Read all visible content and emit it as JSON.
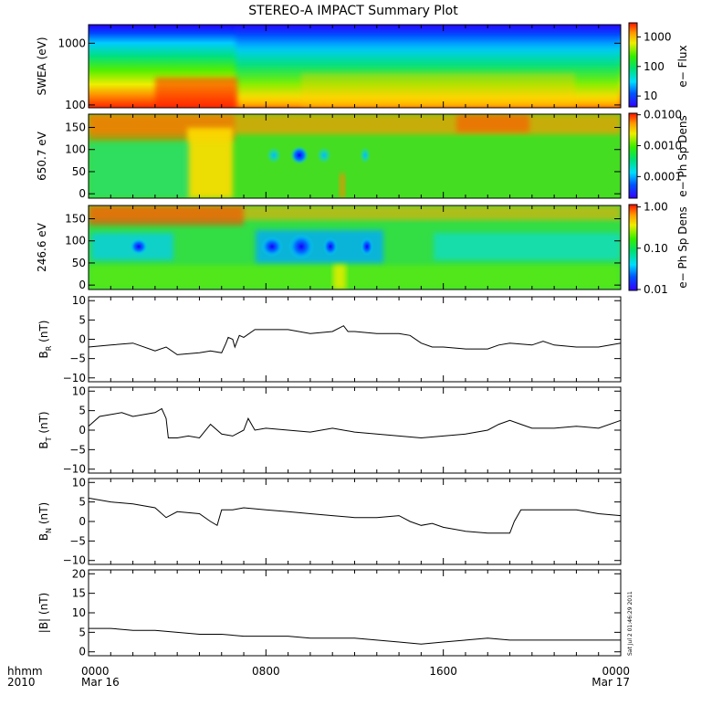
{
  "title": "STEREO-A IMPACT Summary Plot",
  "timestamp": "Sat Jul  2 01:46:29 2011",
  "time_axis": {
    "corner_label_top": "hhmm",
    "corner_label_bottom": "2010",
    "ticks": [
      {
        "hours": 0,
        "label": "0000",
        "date": "Mar 16"
      },
      {
        "hours": 8,
        "label": "0800",
        "date": ""
      },
      {
        "hours": 16,
        "label": "1600",
        "date": ""
      },
      {
        "hours": 24,
        "label": "0000",
        "date": "Mar 17"
      }
    ],
    "range_hours": [
      0,
      24
    ],
    "minor_tick_hours": 1
  },
  "chart_data": [
    {
      "type": "heatmap",
      "ylabel": "SWEA (eV)",
      "y_scale": "log",
      "ylim": [
        90,
        2000
      ],
      "yticks": [
        {
          "value": 100,
          "label": "100"
        },
        {
          "value": 1000,
          "label": "1000"
        }
      ],
      "colorbar": {
        "label": "e− Flux",
        "scale": "log",
        "range": [
          4,
          3000
        ],
        "ticks": [
          {
            "value": 10,
            "label": "10"
          },
          {
            "value": 100,
            "label": "100"
          },
          {
            "value": 1000,
            "label": "1000"
          }
        ]
      }
    },
    {
      "type": "heatmap",
      "ylabel": "650.7 eV",
      "ylim": [
        -10,
        180
      ],
      "yticks": [
        {
          "value": 0,
          "label": "0"
        },
        {
          "value": 50,
          "label": "50"
        },
        {
          "value": 100,
          "label": "100"
        },
        {
          "value": 150,
          "label": "150"
        }
      ],
      "colorbar": {
        "label": "e− Ph Sp Dens",
        "scale": "log",
        "range": [
          2e-05,
          0.012
        ],
        "ticks": [
          {
            "value": 0.0001,
            "label": "0.0001"
          },
          {
            "value": 0.001,
            "label": "0.0010"
          },
          {
            "value": 0.01,
            "label": "0.0100"
          }
        ]
      }
    },
    {
      "type": "heatmap",
      "ylabel": "246.6 eV",
      "ylim": [
        -10,
        180
      ],
      "yticks": [
        {
          "value": 0,
          "label": "0"
        },
        {
          "value": 50,
          "label": "50"
        },
        {
          "value": 100,
          "label": "100"
        },
        {
          "value": 150,
          "label": "150"
        }
      ],
      "colorbar": {
        "label": "e− Ph Sp Dens",
        "scale": "log",
        "range": [
          0.01,
          1.2
        ],
        "ticks": [
          {
            "value": 0.01,
            "label": "0.01"
          },
          {
            "value": 0.1,
            "label": "0.10"
          },
          {
            "value": 1.0,
            "label": "1.00"
          }
        ]
      }
    },
    {
      "type": "line",
      "ylabel_main": "B",
      "ylabel_sub": "R",
      "ylabel_unit": "(nT)",
      "ylim": [
        -11,
        11
      ],
      "yticks": [
        {
          "value": -10,
          "label": "−10"
        },
        {
          "value": -5,
          "label": "−5"
        },
        {
          "value": 0,
          "label": "0"
        },
        {
          "value": 5,
          "label": "5"
        },
        {
          "value": 10,
          "label": "10"
        }
      ],
      "x": [
        0,
        1,
        2,
        3,
        3.5,
        4,
        5,
        5.5,
        6,
        6.2,
        6.3,
        6.5,
        6.6,
        6.8,
        7,
        7.5,
        8,
        9,
        10,
        11,
        11.5,
        11.7,
        12,
        13,
        14,
        14.5,
        15,
        15.5,
        16,
        17,
        18,
        18.5,
        19,
        20,
        20.5,
        21,
        22,
        23,
        24
      ],
      "y": [
        -2,
        -1.5,
        -1,
        -3,
        -2,
        -4,
        -3.5,
        -3,
        -3.5,
        -1,
        0.5,
        0,
        -2,
        1,
        0.5,
        2.5,
        2.5,
        2.5,
        1.5,
        2,
        3.5,
        2,
        2,
        1.5,
        1.5,
        1,
        -1,
        -2,
        -2,
        -2.5,
        -2.5,
        -1.5,
        -1,
        -1.5,
        -0.5,
        -1.5,
        -2,
        -2,
        -1
      ]
    },
    {
      "type": "line",
      "ylabel_main": "B",
      "ylabel_sub": "T",
      "ylabel_unit": "(nT)",
      "ylim": [
        -11,
        11
      ],
      "yticks": [
        {
          "value": -10,
          "label": "−10"
        },
        {
          "value": -5,
          "label": "−5"
        },
        {
          "value": 0,
          "label": "0"
        },
        {
          "value": 5,
          "label": "5"
        },
        {
          "value": 10,
          "label": "10"
        }
      ],
      "x": [
        0,
        0.5,
        1,
        1.5,
        2,
        2.5,
        3,
        3.3,
        3.5,
        3.6,
        4,
        4.5,
        5,
        5.5,
        6,
        6.5,
        7,
        7.2,
        7.5,
        8,
        9,
        10,
        11,
        12,
        13,
        14,
        15,
        16,
        17,
        18,
        18.5,
        19,
        19.5,
        20,
        21,
        22,
        23,
        24
      ],
      "y": [
        1,
        3.5,
        4,
        4.5,
        3.5,
        4,
        4.5,
        5.5,
        3,
        -2,
        -2,
        -1.5,
        -2,
        1.5,
        -1,
        -1.5,
        0,
        3,
        0,
        0.5,
        0,
        -0.5,
        0.5,
        -0.5,
        -1,
        -1.5,
        -2,
        -1.5,
        -1,
        0,
        1.5,
        2.5,
        1.5,
        0.5,
        0.5,
        1,
        0.5,
        2.5
      ]
    },
    {
      "type": "line",
      "ylabel_main": "B",
      "ylabel_sub": "N",
      "ylabel_unit": "(nT)",
      "ylim": [
        -11,
        11
      ],
      "yticks": [
        {
          "value": -10,
          "label": "−10"
        },
        {
          "value": -5,
          "label": "−5"
        },
        {
          "value": 0,
          "label": "0"
        },
        {
          "value": 5,
          "label": "5"
        },
        {
          "value": 10,
          "label": "10"
        }
      ],
      "x": [
        0,
        0.5,
        1,
        2,
        3,
        3.5,
        4,
        5,
        5.5,
        5.8,
        6,
        6.5,
        7,
        8,
        9,
        10,
        11,
        12,
        13,
        14,
        14.5,
        15,
        15.5,
        16,
        16.5,
        17,
        18,
        19,
        19.2,
        19.5,
        20,
        21,
        22,
        23,
        24
      ],
      "y": [
        6,
        5.5,
        5,
        4.5,
        3.5,
        1,
        2.5,
        2,
        0,
        -1,
        3,
        3,
        3.5,
        3,
        2.5,
        2,
        1.5,
        1,
        1,
        1.5,
        0,
        -1,
        -0.5,
        -1.5,
        -2,
        -2.5,
        -3,
        -3,
        0,
        3,
        3,
        3,
        3,
        2,
        1.5
      ]
    },
    {
      "type": "line",
      "ylabel_main": "|B|",
      "ylabel_sub": "",
      "ylabel_unit": "(nT)",
      "ylim": [
        -1,
        21
      ],
      "yticks": [
        {
          "value": 0,
          "label": "0"
        },
        {
          "value": 5,
          "label": "5"
        },
        {
          "value": 10,
          "label": "10"
        },
        {
          "value": 15,
          "label": "15"
        },
        {
          "value": 20,
          "label": "20"
        }
      ],
      "x": [
        0,
        1,
        2,
        3,
        4,
        5,
        6,
        7,
        8,
        9,
        10,
        11,
        12,
        13,
        14,
        15,
        16,
        17,
        18,
        19,
        20,
        21,
        22,
        23,
        24
      ],
      "y": [
        6,
        6,
        5.5,
        5.5,
        5,
        4.5,
        4.5,
        4,
        4,
        4,
        3.5,
        3.5,
        3.5,
        3,
        2.5,
        2,
        2.5,
        3,
        3.5,
        3,
        3,
        3,
        3,
        3,
        3
      ]
    }
  ]
}
